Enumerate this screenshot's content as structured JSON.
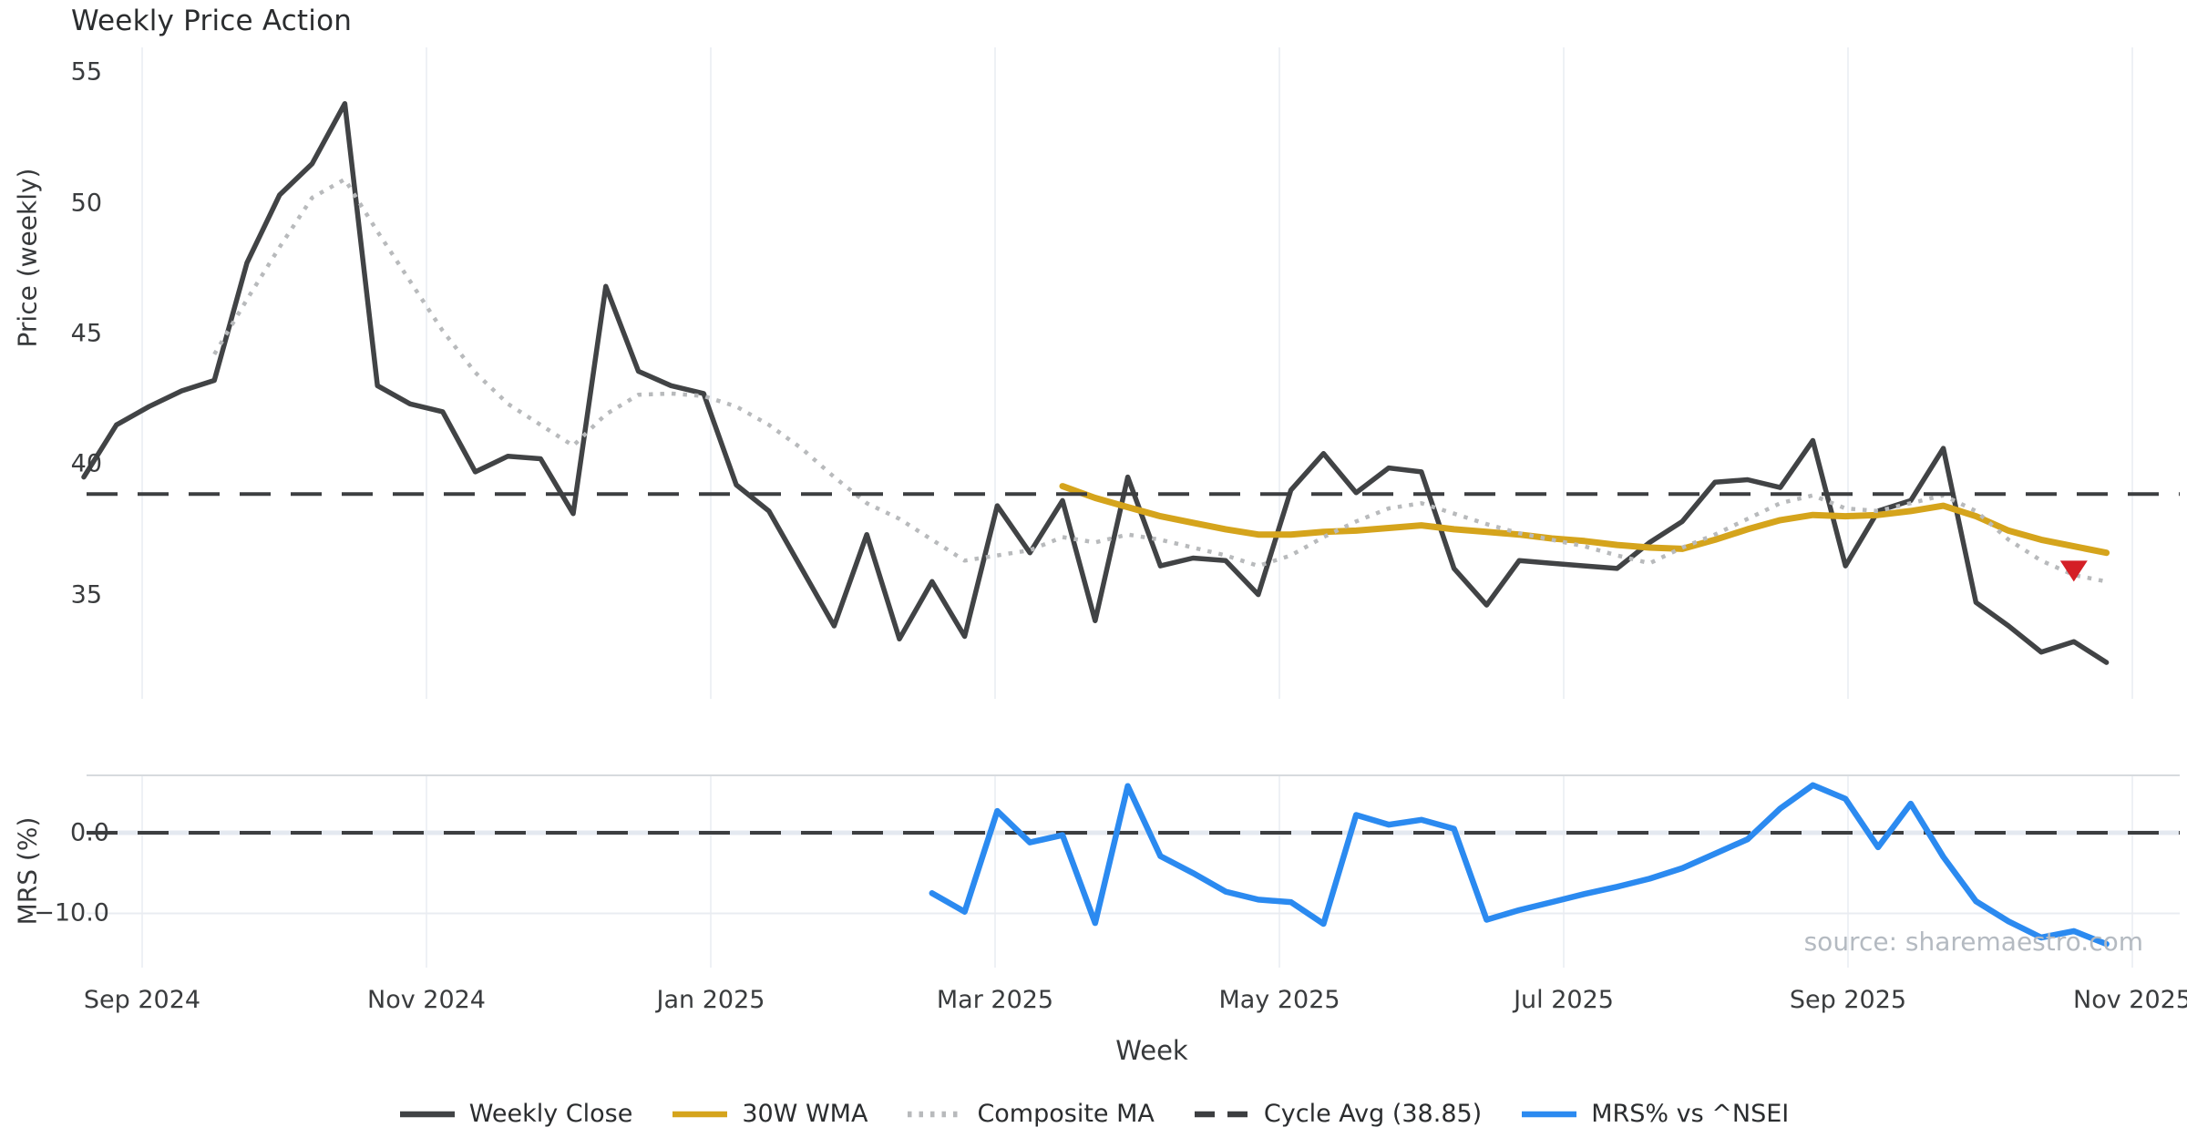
{
  "title": "Weekly Price Action",
  "watermark": "source: sharemaestro.com",
  "axes": {
    "price": {
      "label": "Price (weekly)",
      "tick_labels": [
        "55",
        "50",
        "45",
        "40",
        "35"
      ],
      "tick_values": [
        55,
        50,
        45,
        40,
        35
      ],
      "range": [
        31.0,
        55.95
      ]
    },
    "mrs": {
      "label": "MRS (%)",
      "tick_labels": [
        "0.0",
        "−10.0"
      ],
      "tick_values": [
        0,
        -10
      ],
      "range": [
        -16.7,
        7.1
      ]
    },
    "x": {
      "label": "Week",
      "tick_labels": [
        "Sep 2024",
        "Nov 2024",
        "Jan 2025",
        "Mar 2025",
        "May 2025",
        "Jul 2025",
        "Sep 2025",
        "Nov 2025"
      ]
    }
  },
  "legend": [
    {
      "label": "Weekly Close",
      "swatch": "solid",
      "color": "#414345"
    },
    {
      "label": "30W WMA",
      "swatch": "solid",
      "color": "#d5a41c"
    },
    {
      "label": "Composite MA",
      "swatch": "dotted",
      "color": "#b8babc"
    },
    {
      "label": "Cycle Avg (38.85)",
      "swatch": "dashed",
      "color": "#3c3e40"
    },
    {
      "label": "MRS% vs ^NSEI",
      "swatch": "solid",
      "color": "#2b8af0"
    }
  ],
  "chart_data": {
    "type": "line",
    "title": "Weekly Price Action",
    "x_unit": "week index (week 0 = mid-Aug 2024, weekly spacing, ~63 weeks to early Nov 2025)",
    "x_tick_labels": [
      "Sep 2024",
      "Nov 2024",
      "Jan 2025",
      "Mar 2025",
      "May 2025",
      "Jul 2025",
      "Sep 2025",
      "Nov 2025"
    ],
    "x_tick_weeks": [
      1.84,
      10.56,
      19.27,
      27.99,
      36.7,
      45.42,
      54.13,
      62.85
    ],
    "panels": {
      "price": {
        "ylabel": "Price (weekly)",
        "ylim": [
          31.0,
          55.95
        ],
        "yticks": [
          55,
          50,
          45,
          40,
          35
        ],
        "grid": "vertical-only"
      },
      "mrs": {
        "ylabel": "MRS (%)",
        "ylim": [
          -16.7,
          7.1
        ],
        "yticks": [
          0,
          -10
        ],
        "zeroline": true,
        "grid": "vertical-only"
      }
    },
    "legend_position": "bottom-center",
    "series": [
      {
        "name": "Weekly Close",
        "panel": "price",
        "color": "#414345",
        "style": "solid",
        "start_week": 0,
        "values": [
          39.5,
          41.5,
          42.2,
          42.8,
          43.2,
          47.7,
          50.3,
          51.5,
          53.8,
          43.0,
          42.3,
          42.0,
          39.7,
          40.3,
          40.2,
          38.1,
          46.8,
          43.55,
          43.0,
          42.7,
          39.2,
          38.2,
          36.0,
          33.8,
          37.3,
          33.3,
          35.5,
          33.4,
          38.4,
          36.6,
          38.6,
          34.0,
          39.5,
          36.1,
          36.4,
          36.3,
          35.0,
          39.0,
          40.4,
          38.9,
          39.85,
          39.7,
          36.0,
          34.6,
          36.3,
          36.2,
          36.1,
          36.0,
          37.0,
          37.8,
          39.3,
          39.4,
          39.1,
          40.9,
          36.1,
          38.2,
          38.6,
          40.6,
          34.7,
          33.8,
          32.8,
          33.2,
          32.4
        ]
      },
      {
        "name": "30W WMA",
        "panel": "price",
        "color": "#d5a41c",
        "style": "solid",
        "start_week": 30,
        "values": [
          39.15,
          38.7,
          38.35,
          38.0,
          37.75,
          37.5,
          37.3,
          37.3,
          37.4,
          37.45,
          37.55,
          37.65,
          37.5,
          37.4,
          37.3,
          37.15,
          37.05,
          36.9,
          36.8,
          36.75,
          37.1,
          37.5,
          37.85,
          38.05,
          38.0,
          38.05,
          38.2,
          38.4,
          38.0,
          37.45,
          37.1,
          36.85,
          36.6
        ]
      },
      {
        "name": "Composite MA",
        "panel": "price",
        "color": "#b8babc",
        "style": "dotted",
        "start_week": 4,
        "values": [
          44.2,
          46.3,
          48.3,
          50.2,
          50.9,
          48.9,
          47.0,
          45.1,
          43.5,
          42.3,
          41.5,
          40.7,
          41.9,
          42.65,
          42.7,
          42.6,
          42.2,
          41.5,
          40.6,
          39.5,
          38.5,
          37.9,
          37.1,
          36.3,
          36.5,
          36.7,
          37.2,
          37.0,
          37.3,
          37.1,
          36.8,
          36.5,
          36.1,
          36.5,
          37.2,
          37.8,
          38.3,
          38.5,
          38.1,
          37.7,
          37.35,
          37.1,
          36.85,
          36.5,
          36.2,
          36.8,
          37.3,
          37.9,
          38.5,
          38.8,
          38.3,
          38.2,
          38.5,
          38.8,
          38.2,
          37.1,
          36.3,
          35.75,
          35.5
        ]
      },
      {
        "name": "Cycle Avg (38.85)",
        "panel": "price",
        "color": "#3c3e40",
        "style": "dashed",
        "constant": 38.85
      },
      {
        "name": "MRS% vs ^NSEI",
        "panel": "mrs",
        "color": "#2b8af0",
        "style": "solid",
        "start_week": 26,
        "values": [
          -7.5,
          -9.8,
          2.7,
          -1.2,
          -0.3,
          -11.2,
          5.8,
          -2.9,
          -5.0,
          -7.3,
          -8.3,
          -8.6,
          -11.3,
          2.2,
          1.0,
          1.6,
          0.5,
          -10.8,
          -9.6,
          -8.6,
          -7.6,
          -6.7,
          -5.7,
          -4.4,
          -2.6,
          -0.8,
          3.0,
          5.9,
          4.2,
          -1.8,
          3.6,
          -3.0,
          -8.5,
          -11.0,
          -13.0,
          -12.2,
          -13.8
        ]
      }
    ],
    "markers": [
      {
        "shape": "triangle-down",
        "color": "#d41f26",
        "panel": "price",
        "week": 61,
        "value": 35.95,
        "meaning": "signal marker near dotted/It sits below 30W WMA at far right"
      }
    ]
  }
}
